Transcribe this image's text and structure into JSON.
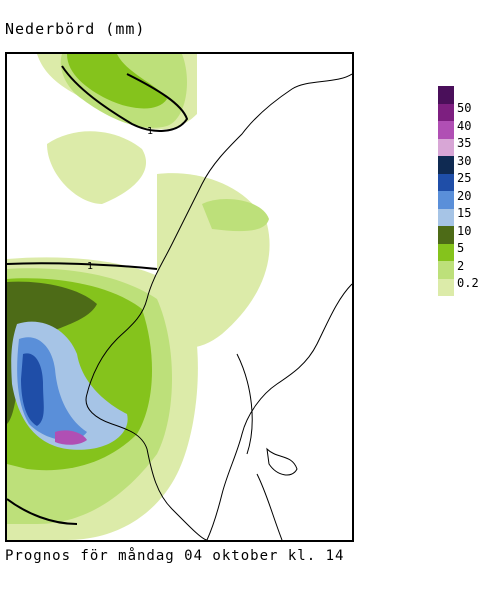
{
  "title": "Nederbörd (mm)",
  "caption": "Prognos för måndag 04 oktober kl. 14",
  "legend": {
    "levels": [
      {
        "label": "0.2",
        "color": "#dceba9"
      },
      {
        "label": "2",
        "color": "#bde07a"
      },
      {
        "label": "5",
        "color": "#85c31c"
      },
      {
        "label": "10",
        "color": "#4d6b17"
      },
      {
        "label": "15",
        "color": "#a6c4e6"
      },
      {
        "label": "20",
        "color": "#5a8fd9"
      },
      {
        "label": "25",
        "color": "#1f4ea8"
      },
      {
        "label": "30",
        "color": "#0f2a52"
      },
      {
        "label": "35",
        "color": "#d8a6d6"
      },
      {
        "label": "40",
        "color": "#b04fb4"
      },
      {
        "label": "50",
        "color": "#7d1f80"
      },
      {
        "label": "",
        "color": "#4a0f5a"
      }
    ]
  },
  "contour_label": "1"
}
